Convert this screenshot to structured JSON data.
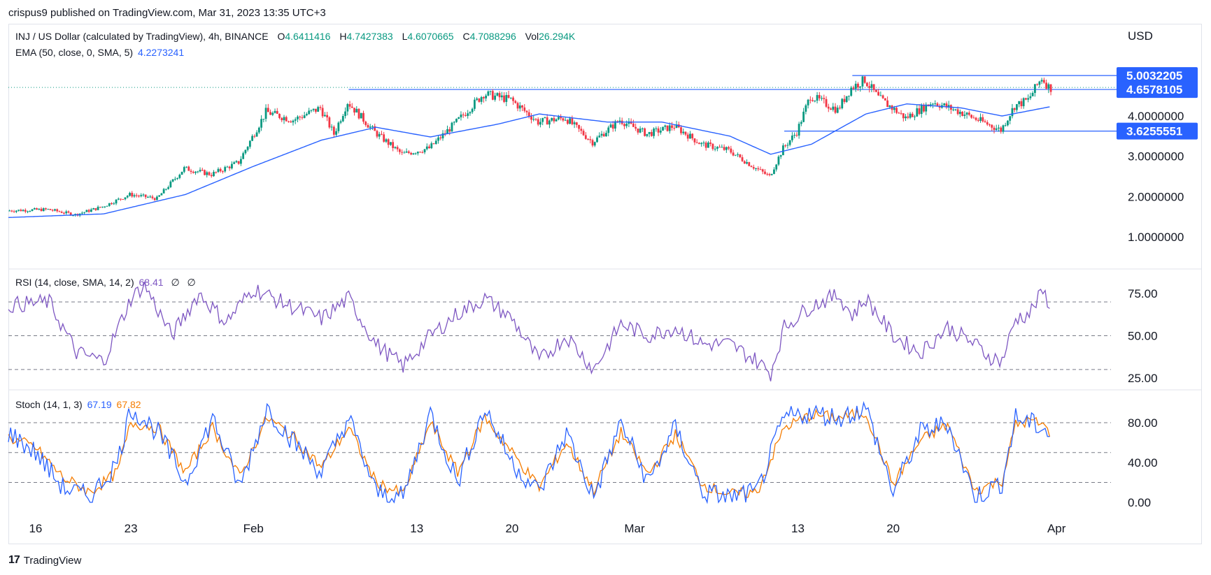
{
  "published": "crispus9 published on TradingView.com, Mar 31, 2023 13:35 UTC+3",
  "symbol": {
    "name": "INJ / US Dollar (calculated by TradingView), 4h, BINANCE",
    "o_label": "O",
    "o": "4.6411416",
    "h_label": "H",
    "h": "4.7427383",
    "l_label": "L",
    "l": "4.6070665",
    "c_label": "C",
    "c": "4.7088296",
    "vol_label": "Vol",
    "vol": "26.294K"
  },
  "ema": {
    "label": "EMA (50, close, 0, SMA, 5)",
    "value": "4.2273241"
  },
  "rsi": {
    "label": "RSI (14, close, SMA, 14, 2)",
    "value": "68.41",
    "extra1": "∅",
    "extra2": "∅"
  },
  "stoch": {
    "label": "Stoch (14, 1, 3)",
    "k": "67.19",
    "d": "67.82"
  },
  "currency": "USD",
  "footer": {
    "logo": "17",
    "brand": "TradingView"
  },
  "colors": {
    "up": "#089981",
    "down": "#f23645",
    "ema": "#2962ff",
    "rsi": "#7e57c2",
    "k": "#2962ff",
    "d": "#f57c00",
    "tag": "#2962ff"
  },
  "chart_data": {
    "type": "candlestick",
    "interval": "4h",
    "x_ticks": [
      "16",
      "23",
      "Feb",
      "13",
      "20",
      "Mar",
      "13",
      "20",
      "Apr"
    ],
    "x_tick_dates": [
      "2023-01-16",
      "2023-01-23",
      "2023-02-01",
      "2023-02-13",
      "2023-02-20",
      "2023-03-01",
      "2023-03-13",
      "2023-03-20",
      "2023-04-01"
    ],
    "x_range": [
      "2023-01-14",
      "2023-04-05"
    ],
    "price_axis": {
      "ticks": [
        "1.0000000",
        "2.0000000",
        "3.0000000",
        "4.0000000"
      ],
      "tick_values": [
        1,
        2,
        3,
        4
      ],
      "range": [
        0.2,
        5.5
      ]
    },
    "price_tags": [
      {
        "label": "5.0032205",
        "value": 5.0032205
      },
      {
        "label": "4.6578105",
        "value": 4.6578105
      },
      {
        "label": "3.6255551",
        "value": 3.6255551
      }
    ],
    "horizontal_lines": [
      {
        "value": 5.0032205,
        "from": "2023-03-17",
        "to": "2023-04-05"
      },
      {
        "value": 4.6578105,
        "from": "2023-02-08",
        "to": "2023-04-05"
      },
      {
        "value": 3.6255551,
        "from": "2023-03-12",
        "to": "2023-04-05"
      }
    ],
    "price_path": [
      [
        "2023-01-14",
        1.65
      ],
      [
        "2023-01-17",
        1.68
      ],
      [
        "2023-01-19",
        1.55
      ],
      [
        "2023-01-21",
        1.75
      ],
      [
        "2023-01-23",
        2.05
      ],
      [
        "2023-01-25",
        1.95
      ],
      [
        "2023-01-27",
        2.7
      ],
      [
        "2023-01-29",
        2.55
      ],
      [
        "2023-01-31",
        2.85
      ],
      [
        "2023-02-02",
        4.1
      ],
      [
        "2023-02-04",
        3.9
      ],
      [
        "2023-02-06",
        4.2
      ],
      [
        "2023-02-07",
        3.55
      ],
      [
        "2023-02-08",
        4.35
      ],
      [
        "2023-02-10",
        3.6
      ],
      [
        "2023-02-12",
        3.05
      ],
      [
        "2023-02-14",
        3.2
      ],
      [
        "2023-02-16",
        3.85
      ],
      [
        "2023-02-18",
        4.55
      ],
      [
        "2023-02-20",
        4.4
      ],
      [
        "2023-02-22",
        3.85
      ],
      [
        "2023-02-24",
        3.95
      ],
      [
        "2023-02-26",
        3.35
      ],
      [
        "2023-02-28",
        3.9
      ],
      [
        "2023-03-02",
        3.55
      ],
      [
        "2023-03-04",
        3.75
      ],
      [
        "2023-03-06",
        3.3
      ],
      [
        "2023-03-08",
        3.15
      ],
      [
        "2023-03-10",
        2.7
      ],
      [
        "2023-03-11",
        2.5
      ],
      [
        "2023-03-12",
        3.2
      ],
      [
        "2023-03-13",
        3.6
      ],
      [
        "2023-03-14",
        4.5
      ],
      [
        "2023-03-16",
        4.15
      ],
      [
        "2023-03-17",
        4.7
      ],
      [
        "2023-03-18",
        4.9
      ],
      [
        "2023-03-19",
        4.45
      ],
      [
        "2023-03-21",
        3.95
      ],
      [
        "2023-03-23",
        4.35
      ],
      [
        "2023-03-25",
        4.1
      ],
      [
        "2023-03-27",
        3.8
      ],
      [
        "2023-03-28",
        3.65
      ],
      [
        "2023-03-29",
        4.25
      ],
      [
        "2023-03-30",
        4.4
      ],
      [
        "2023-03-31",
        4.95
      ],
      [
        "2023-03-31T13:00",
        4.7
      ]
    ],
    "ema50_path": [
      [
        "2023-01-14",
        1.48
      ],
      [
        "2023-01-21",
        1.57
      ],
      [
        "2023-01-27",
        2.05
      ],
      [
        "2023-02-01",
        2.75
      ],
      [
        "2023-02-06",
        3.4
      ],
      [
        "2023-02-10",
        3.72
      ],
      [
        "2023-02-14",
        3.48
      ],
      [
        "2023-02-19",
        3.8
      ],
      [
        "2023-02-22",
        4.05
      ],
      [
        "2023-02-27",
        3.85
      ],
      [
        "2023-03-03",
        3.85
      ],
      [
        "2023-03-08",
        3.5
      ],
      [
        "2023-03-11",
        3.05
      ],
      [
        "2023-03-14",
        3.3
      ],
      [
        "2023-03-18",
        4.05
      ],
      [
        "2023-03-21",
        4.3
      ],
      [
        "2023-03-25",
        4.2
      ],
      [
        "2023-03-28",
        4.0
      ],
      [
        "2023-03-31T13:00",
        4.23
      ]
    ],
    "rsi": {
      "axis_ticks": [
        "25.00",
        "50.00",
        "75.00"
      ],
      "tick_values": [
        25,
        50,
        75
      ],
      "range": [
        20,
        85
      ],
      "bands": [
        30,
        50,
        70
      ],
      "path": [
        [
          "2023-01-14",
          68
        ],
        [
          "2023-01-17",
          70
        ],
        [
          "2023-01-19",
          40
        ],
        [
          "2023-01-21",
          35
        ],
        [
          "2023-01-23",
          72
        ],
        [
          "2023-01-24",
          80
        ],
        [
          "2023-01-26",
          50
        ],
        [
          "2023-01-28",
          75
        ],
        [
          "2023-01-30",
          58
        ],
        [
          "2023-02-01",
          78
        ],
        [
          "2023-02-03",
          70
        ],
        [
          "2023-02-06",
          60
        ],
        [
          "2023-02-08",
          72
        ],
        [
          "2023-02-10",
          45
        ],
        [
          "2023-02-12",
          32
        ],
        [
          "2023-02-14",
          50
        ],
        [
          "2023-02-16",
          63
        ],
        [
          "2023-02-18",
          72
        ],
        [
          "2023-02-20",
          60
        ],
        [
          "2023-02-22",
          35
        ],
        [
          "2023-02-24",
          50
        ],
        [
          "2023-02-26",
          30
        ],
        [
          "2023-02-28",
          57
        ],
        [
          "2023-03-02",
          50
        ],
        [
          "2023-03-04",
          55
        ],
        [
          "2023-03-06",
          45
        ],
        [
          "2023-03-08",
          45
        ],
        [
          "2023-03-10",
          35
        ],
        [
          "2023-03-11",
          28
        ],
        [
          "2023-03-12",
          55
        ],
        [
          "2023-03-14",
          68
        ],
        [
          "2023-03-16",
          74
        ],
        [
          "2023-03-17",
          62
        ],
        [
          "2023-03-18",
          72
        ],
        [
          "2023-03-20",
          50
        ],
        [
          "2023-03-22",
          40
        ],
        [
          "2023-03-24",
          55
        ],
        [
          "2023-03-26",
          45
        ],
        [
          "2023-03-27",
          38
        ],
        [
          "2023-03-28",
          35
        ],
        [
          "2023-03-29",
          60
        ],
        [
          "2023-03-30",
          63
        ],
        [
          "2023-03-31",
          76
        ],
        [
          "2023-03-31T13:00",
          68.41
        ]
      ]
    },
    "stoch": {
      "axis_ticks": [
        "0.00",
        "40.00",
        "80.00"
      ],
      "tick_values": [
        0,
        40,
        80
      ],
      "range": [
        -5,
        105
      ],
      "bands": [
        20,
        50,
        80
      ],
      "k_path": [
        [
          "2023-01-14",
          70
        ],
        [
          "2023-01-16",
          50
        ],
        [
          "2023-01-18",
          15
        ],
        [
          "2023-01-20",
          5
        ],
        [
          "2023-01-22",
          40
        ],
        [
          "2023-01-23",
          95
        ],
        [
          "2023-01-25",
          70
        ],
        [
          "2023-01-27",
          20
        ],
        [
          "2023-01-29",
          85
        ],
        [
          "2023-01-31",
          15
        ],
        [
          "2023-02-02",
          95
        ],
        [
          "2023-02-04",
          60
        ],
        [
          "2023-02-06",
          30
        ],
        [
          "2023-02-08",
          85
        ],
        [
          "2023-02-10",
          10
        ],
        [
          "2023-02-12",
          5
        ],
        [
          "2023-02-14",
          90
        ],
        [
          "2023-02-16",
          20
        ],
        [
          "2023-02-18",
          95
        ],
        [
          "2023-02-20",
          40
        ],
        [
          "2023-02-22",
          10
        ],
        [
          "2023-02-24",
          70
        ],
        [
          "2023-02-26",
          5
        ],
        [
          "2023-02-28",
          80
        ],
        [
          "2023-03-02",
          20
        ],
        [
          "2023-03-04",
          75
        ],
        [
          "2023-03-06",
          10
        ],
        [
          "2023-03-08",
          5
        ],
        [
          "2023-03-10",
          10
        ],
        [
          "2023-03-12",
          85
        ],
        [
          "2023-03-14",
          90
        ],
        [
          "2023-03-16",
          85
        ],
        [
          "2023-03-18",
          95
        ],
        [
          "2023-03-20",
          10
        ],
        [
          "2023-03-22",
          70
        ],
        [
          "2023-03-24",
          80
        ],
        [
          "2023-03-26",
          5
        ],
        [
          "2023-03-28",
          20
        ],
        [
          "2023-03-29",
          85
        ],
        [
          "2023-03-30",
          80
        ],
        [
          "2023-03-31",
          75
        ],
        [
          "2023-03-31T13:00",
          67.19
        ]
      ],
      "d_path": [
        [
          "2023-01-14",
          65
        ],
        [
          "2023-01-16",
          55
        ],
        [
          "2023-01-18",
          25
        ],
        [
          "2023-01-20",
          10
        ],
        [
          "2023-01-22",
          30
        ],
        [
          "2023-01-23",
          80
        ],
        [
          "2023-01-25",
          75
        ],
        [
          "2023-01-27",
          30
        ],
        [
          "2023-01-29",
          75
        ],
        [
          "2023-01-31",
          25
        ],
        [
          "2023-02-02",
          85
        ],
        [
          "2023-02-04",
          65
        ],
        [
          "2023-02-06",
          35
        ],
        [
          "2023-02-08",
          75
        ],
        [
          "2023-02-10",
          20
        ],
        [
          "2023-02-12",
          8
        ],
        [
          "2023-02-14",
          80
        ],
        [
          "2023-02-16",
          30
        ],
        [
          "2023-02-18",
          85
        ],
        [
          "2023-02-20",
          50
        ],
        [
          "2023-02-22",
          15
        ],
        [
          "2023-02-24",
          60
        ],
        [
          "2023-02-26",
          12
        ],
        [
          "2023-02-28",
          70
        ],
        [
          "2023-03-02",
          28
        ],
        [
          "2023-03-04",
          68
        ],
        [
          "2023-03-06",
          18
        ],
        [
          "2023-03-08",
          8
        ],
        [
          "2023-03-10",
          10
        ],
        [
          "2023-03-12",
          75
        ],
        [
          "2023-03-14",
          88
        ],
        [
          "2023-03-16",
          85
        ],
        [
          "2023-03-18",
          90
        ],
        [
          "2023-03-20",
          18
        ],
        [
          "2023-03-22",
          62
        ],
        [
          "2023-03-24",
          78
        ],
        [
          "2023-03-26",
          12
        ],
        [
          "2023-03-28",
          22
        ],
        [
          "2023-03-29",
          78
        ],
        [
          "2023-03-30",
          82
        ],
        [
          "2023-03-31",
          78
        ],
        [
          "2023-03-31T13:00",
          67.82
        ]
      ]
    }
  }
}
